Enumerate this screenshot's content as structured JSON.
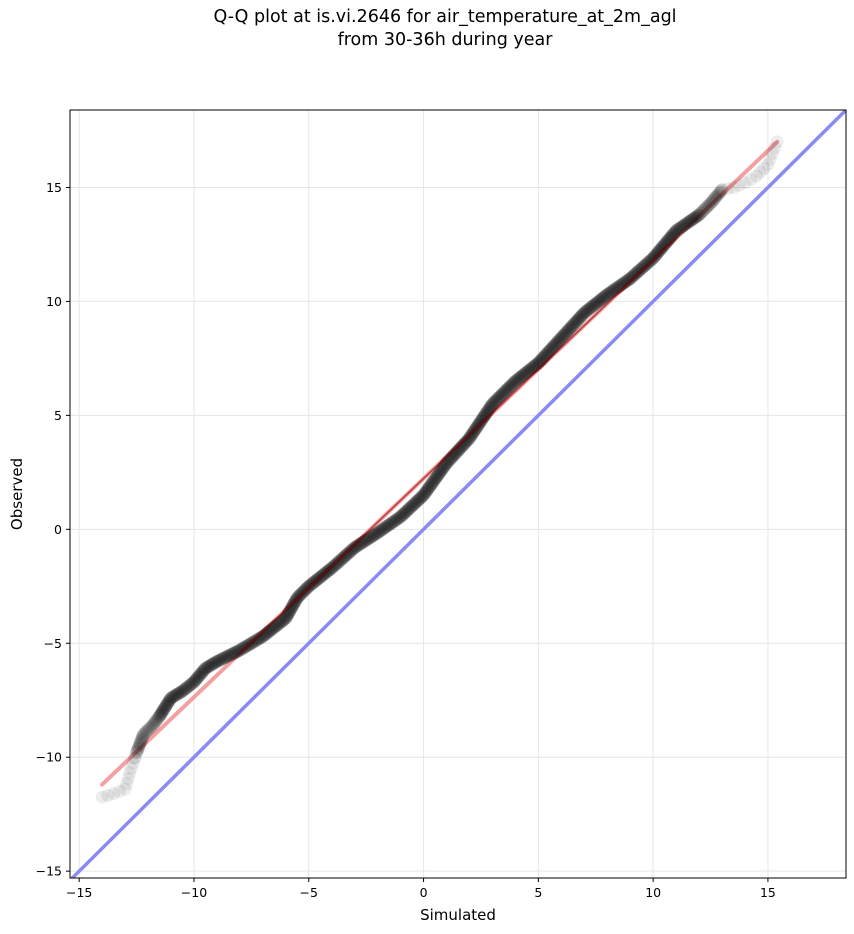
{
  "figure": {
    "title_line1": "Q-Q plot at is.vi.2646 for air_temperature_at_2m_agl",
    "title_line2": "from 30-36h during year"
  },
  "chart_data": {
    "type": "scatter",
    "title": "Q-Q plot at is.vi.2646 for air_temperature_at_2m_agl from 30-36h during year",
    "xlabel": "Simulated",
    "ylabel": "Observed",
    "xlim": [
      -15.4,
      18.4
    ],
    "ylim": [
      -15.3,
      18.4
    ],
    "x_ticks": [
      -15,
      -10,
      -5,
      0,
      5,
      10,
      15
    ],
    "y_ticks": [
      -15,
      -10,
      -5,
      0,
      5,
      10,
      15
    ],
    "x_tick_labels": [
      "−15",
      "−10",
      "−5",
      "0",
      "5",
      "10",
      "15"
    ],
    "y_tick_labels": [
      "−15",
      "−10",
      "−5",
      "0",
      "5",
      "10",
      "15"
    ],
    "grid": true,
    "quantile_curve": [
      {
        "x": -14.0,
        "y": -11.75
      },
      {
        "x": -13.5,
        "y": -11.6
      },
      {
        "x": -13.0,
        "y": -11.4
      },
      {
        "x": -12.8,
        "y": -10.7
      },
      {
        "x": -12.5,
        "y": -9.8
      },
      {
        "x": -12.2,
        "y": -9.0
      },
      {
        "x": -11.8,
        "y": -8.6
      },
      {
        "x": -11.5,
        "y": -8.2
      },
      {
        "x": -11.0,
        "y": -7.4
      },
      {
        "x": -10.5,
        "y": -7.1
      },
      {
        "x": -10.0,
        "y": -6.7
      },
      {
        "x": -9.5,
        "y": -6.1
      },
      {
        "x": -9.0,
        "y": -5.8
      },
      {
        "x": -8.0,
        "y": -5.3
      },
      {
        "x": -7.0,
        "y": -4.7
      },
      {
        "x": -6.0,
        "y": -3.9
      },
      {
        "x": -5.5,
        "y": -3.0
      },
      {
        "x": -5.0,
        "y": -2.5
      },
      {
        "x": -4.0,
        "y": -1.7
      },
      {
        "x": -3.0,
        "y": -0.8
      },
      {
        "x": -2.0,
        "y": -0.15
      },
      {
        "x": -1.0,
        "y": 0.55
      },
      {
        "x": 0.0,
        "y": 1.5
      },
      {
        "x": 1.0,
        "y": 2.9
      },
      {
        "x": 2.0,
        "y": 4.0
      },
      {
        "x": 3.0,
        "y": 5.5
      },
      {
        "x": 4.0,
        "y": 6.5
      },
      {
        "x": 5.0,
        "y": 7.3
      },
      {
        "x": 6.0,
        "y": 8.4
      },
      {
        "x": 7.0,
        "y": 9.5
      },
      {
        "x": 8.0,
        "y": 10.3
      },
      {
        "x": 9.0,
        "y": 11.0
      },
      {
        "x": 10.0,
        "y": 11.9
      },
      {
        "x": 11.0,
        "y": 13.1
      },
      {
        "x": 12.0,
        "y": 13.8
      },
      {
        "x": 12.5,
        "y": 14.3
      },
      {
        "x": 13.0,
        "y": 14.9
      },
      {
        "x": 13.5,
        "y": 15.0
      },
      {
        "x": 14.0,
        "y": 15.2
      },
      {
        "x": 14.5,
        "y": 15.5
      },
      {
        "x": 15.0,
        "y": 16.0
      },
      {
        "x": 15.4,
        "y": 17.0
      }
    ],
    "fit_line": {
      "x": [
        -14.0,
        15.4
      ],
      "y": [
        -11.2,
        17.0
      ]
    },
    "identity_line": {
      "x": [
        -15.4,
        18.4
      ],
      "y": [
        -15.4,
        18.4
      ]
    },
    "colors": {
      "points": "#000000",
      "fit_line": "#f08080",
      "fit_line_inner": "#8b0000",
      "identity_line": "#8a8af5",
      "grid": "#e6e6e6"
    }
  }
}
